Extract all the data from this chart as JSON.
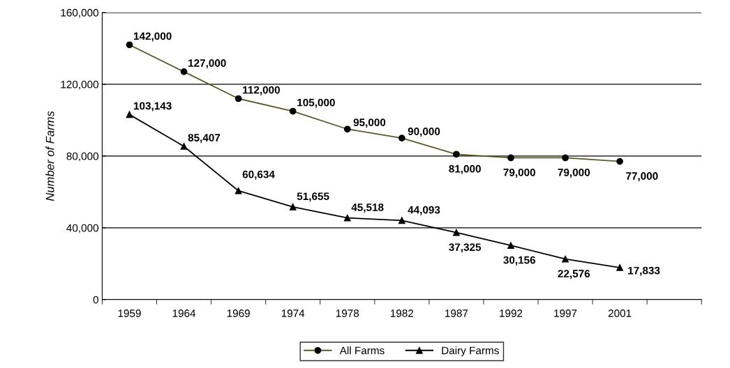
{
  "chart_data": {
    "type": "line",
    "ylabel": "Number of Farms",
    "categories": [
      "1959",
      "1964",
      "1969",
      "1974",
      "1978",
      "1982",
      "1987",
      "1992",
      "1997",
      "2001",
      null
    ],
    "series": [
      {
        "name": "All Farms",
        "color": "#5a5a24",
        "marker": "circle",
        "values": [
          142000,
          127000,
          112000,
          105000,
          95000,
          90000,
          81000,
          79000,
          79000,
          77000,
          null
        ],
        "value_labels": [
          "142,000",
          "127,000",
          "112,000",
          "105,000",
          "95,000",
          "90,000",
          "81,000",
          "79,000",
          "79,000",
          "77,000",
          null
        ]
      },
      {
        "name": "Dairy Farms",
        "color": "#000000",
        "marker": "triangle",
        "values": [
          103143,
          85407,
          60634,
          51655,
          45518,
          44093,
          37325,
          30156,
          22576,
          17833,
          null
        ],
        "value_labels": [
          "103,143",
          "85,407",
          "60,634",
          "51,655",
          "45,518",
          "44,093",
          "37,325",
          "30,156",
          "22,576",
          "17,833",
          null
        ]
      }
    ],
    "ylim": [
      0,
      160000
    ],
    "yticks": [
      0,
      {
        "value": 40000,
        "label": "40,000"
      },
      {
        "value": 80000,
        "label": "80,000"
      },
      {
        "value": 120000,
        "label": "120,000"
      },
      {
        "value": 160000,
        "label": "160,000"
      }
    ],
    "grid": "y",
    "legend": "bottom",
    "line_style": "solid"
  }
}
